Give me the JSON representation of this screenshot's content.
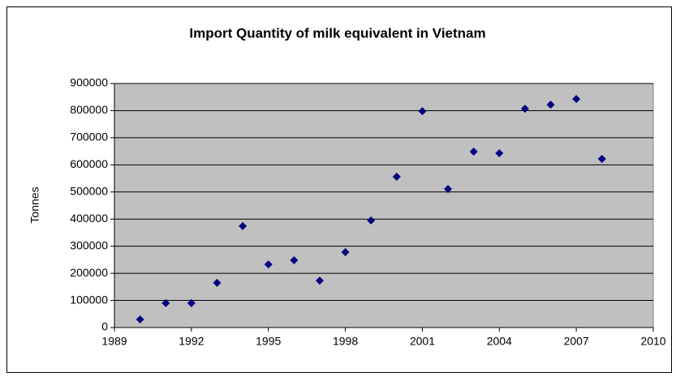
{
  "chart_data": {
    "type": "scatter",
    "title": "Import Quantity of milk equivalent in Vietnam",
    "y_label": "Tonnes",
    "x": [
      1990,
      1991,
      1992,
      1993,
      1994,
      1995,
      1996,
      1997,
      1998,
      1999,
      2000,
      2001,
      2002,
      2003,
      2004,
      2005,
      2006,
      2007,
      2008
    ],
    "values": [
      30000,
      90000,
      90000,
      165000,
      374000,
      233000,
      248000,
      173000,
      278000,
      395000,
      556000,
      798000,
      511000,
      649000,
      643000,
      807000,
      822000,
      843000,
      622000
    ],
    "color": "#000080",
    "xlim": [
      1989,
      2010
    ],
    "xticks": [
      1989,
      1992,
      1995,
      1998,
      2001,
      2004,
      2007,
      2010
    ],
    "ylim": [
      0,
      900000
    ],
    "yticks": [
      0,
      100000,
      200000,
      300000,
      400000,
      500000,
      600000,
      700000,
      800000,
      900000
    ],
    "grid": true
  }
}
